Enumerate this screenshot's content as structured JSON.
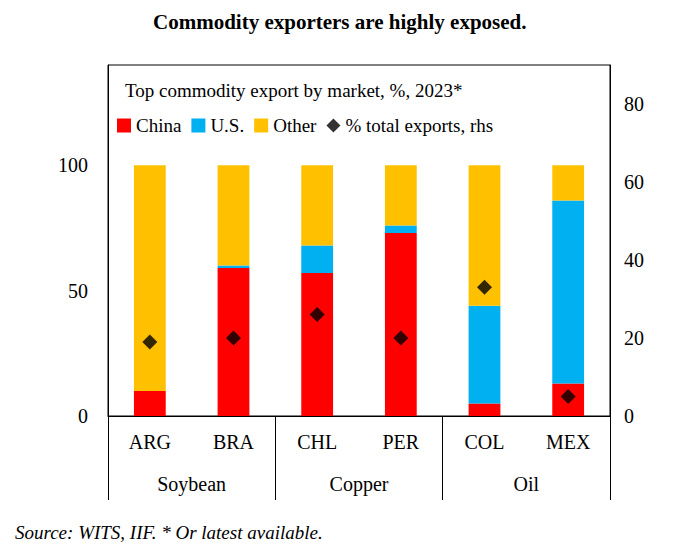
{
  "chart_data": {
    "type": "bar",
    "title": "Commodity exporters are highly exposed.",
    "subtitle": "Top commodity export by market, %, 2023*",
    "source": "Source: WITS, IIF. * Or latest available.",
    "categories": [
      "ARG",
      "BRA",
      "CHL",
      "PER",
      "COL",
      "MEX"
    ],
    "groups": [
      "Soybean",
      "Soybean",
      "Copper",
      "Copper",
      "Oil",
      "Oil"
    ],
    "stacked": true,
    "grid": false,
    "legend": "top left",
    "ylim": [
      0,
      140
    ],
    "yticks": [
      0,
      50,
      100
    ],
    "y2lim": [
      0,
      90
    ],
    "y2ticks": [
      0,
      20,
      40,
      60,
      80
    ],
    "series": [
      {
        "name": "China",
        "type": "bar",
        "color": "#ff0000",
        "values": [
          10,
          59,
          57,
          73,
          5,
          13
        ]
      },
      {
        "name": "U.S.",
        "type": "bar",
        "color": "#00b0f0",
        "values": [
          0,
          1,
          11,
          3,
          39,
          73
        ]
      },
      {
        "name": "Other",
        "type": "bar",
        "color": "#ffc000",
        "values": [
          90,
          40,
          32,
          24,
          56,
          14
        ]
      },
      {
        "name": "% total exports, rhs",
        "type": "scatter",
        "axis": "y2",
        "marker": "diamond",
        "color": "#000000",
        "values": [
          19,
          20,
          26,
          20,
          33,
          5
        ]
      }
    ]
  }
}
